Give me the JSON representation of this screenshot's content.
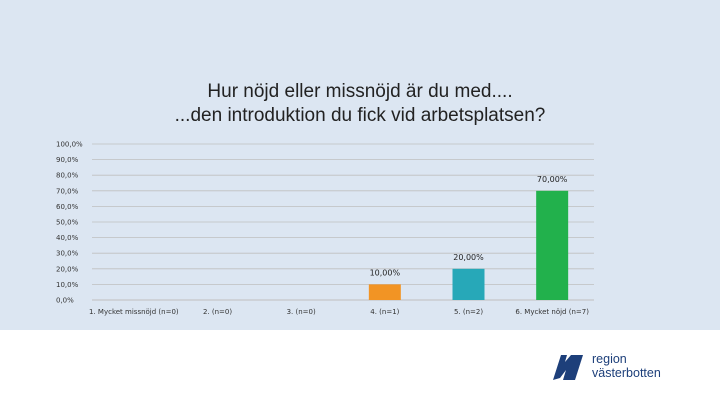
{
  "title_lines": [
    "Hur nöjd eller missnöjd är du med....",
    "...den introduktion du fick vid arbetsplatsen?"
  ],
  "colors": {
    "background": "#dce6f2",
    "gridline": "#bfbfbf",
    "brand": "#1d3f7a"
  },
  "chart_data": {
    "type": "bar",
    "title": "Hur nöjd eller missnöjd är du med.... ...den introduktion du fick vid arbetsplatsen?",
    "xlabel": "",
    "ylabel": "",
    "ylim": [
      0,
      100
    ],
    "y_ticks": [
      "0,0%",
      "10,0%",
      "20,0%",
      "30,0%",
      "40,0%",
      "50,0%",
      "60,0%",
      "70,0%",
      "80,0%",
      "90,0%",
      "100,0%"
    ],
    "grid": true,
    "categories": [
      "1. Mycket missnöjd (n=0)",
      "2. (n=0)",
      "3. (n=0)",
      "4. (n=1)",
      "5. (n=2)",
      "6. Mycket nöjd (n=7)"
    ],
    "values": [
      0,
      0,
      0,
      10,
      20,
      70
    ],
    "data_labels": [
      "",
      "",
      "",
      "10,00%",
      "20,00%",
      "70,00%"
    ],
    "bar_colors": [
      "#f29424",
      "#f29424",
      "#f29424",
      "#f29424",
      "#27a8b8",
      "#22b14c"
    ]
  },
  "logo": {
    "name": "region västerbotten logo",
    "line1": "region",
    "line2": "västerbotten"
  }
}
